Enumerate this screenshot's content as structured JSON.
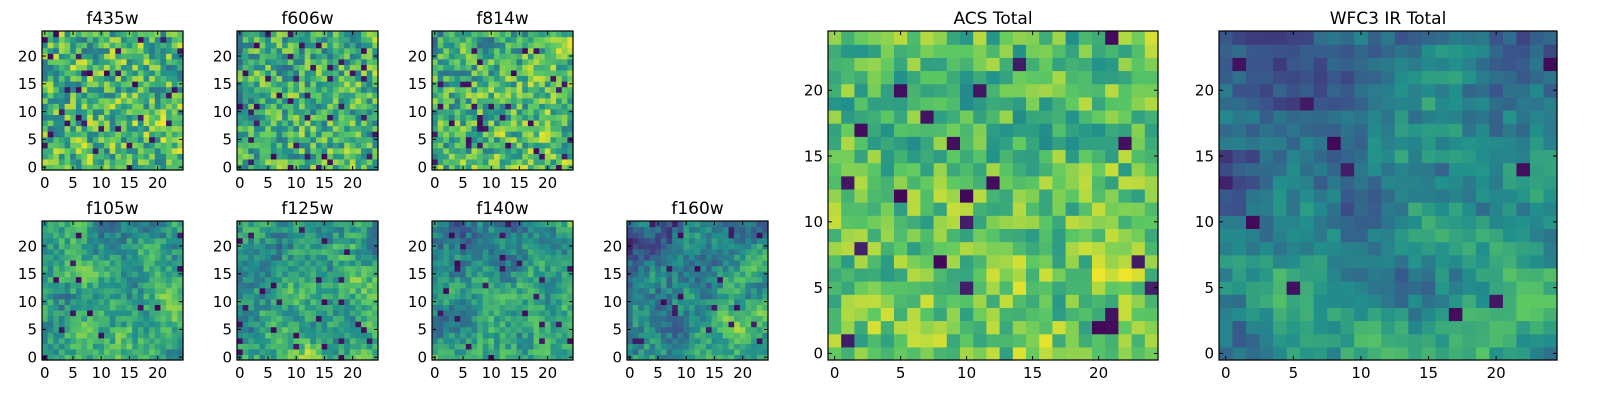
{
  "chart_data": [
    {
      "id": "f435w",
      "type": "heatmap",
      "title": "f435w",
      "grid_size": 25,
      "xlim": [
        0,
        24
      ],
      "ylim": [
        0,
        24
      ],
      "xticks": [
        0,
        5,
        10,
        15,
        20
      ],
      "yticks": [
        0,
        5,
        10,
        15,
        20
      ],
      "colormap": "viridis",
      "pattern": {
        "seed": 11,
        "base": 0.68,
        "smooth": 0.12,
        "noise": 0.55,
        "lowspots": 0.05,
        "gradient": 0.0
      }
    },
    {
      "id": "f606w",
      "type": "heatmap",
      "title": "f606w",
      "grid_size": 25,
      "xlim": [
        0,
        24
      ],
      "ylim": [
        0,
        24
      ],
      "xticks": [
        0,
        5,
        10,
        15,
        20
      ],
      "yticks": [
        0,
        5,
        10,
        15,
        20
      ],
      "colormap": "viridis",
      "pattern": {
        "seed": 23,
        "base": 0.64,
        "smooth": 0.15,
        "noise": 0.5,
        "lowspots": 0.06,
        "gradient": 0.05
      }
    },
    {
      "id": "f814w",
      "type": "heatmap",
      "title": "f814w",
      "grid_size": 25,
      "xlim": [
        0,
        24
      ],
      "ylim": [
        0,
        24
      ],
      "xticks": [
        0,
        5,
        10,
        15,
        20
      ],
      "yticks": [
        0,
        5,
        10,
        15,
        20
      ],
      "colormap": "viridis",
      "pattern": {
        "seed": 37,
        "base": 0.66,
        "smooth": 0.15,
        "noise": 0.5,
        "lowspots": 0.05,
        "gradient": 0.1
      }
    },
    {
      "id": "f105w",
      "type": "heatmap",
      "title": "f105w",
      "grid_size": 25,
      "xlim": [
        0,
        24
      ],
      "ylim": [
        0,
        24
      ],
      "xticks": [
        0,
        5,
        10,
        15,
        20
      ],
      "yticks": [
        0,
        5,
        10,
        15,
        20
      ],
      "colormap": "viridis",
      "pattern": {
        "seed": 41,
        "base": 0.58,
        "smooth": 0.4,
        "noise": 0.28,
        "lowspots": 0.03,
        "gradient": 0.12
      }
    },
    {
      "id": "f125w",
      "type": "heatmap",
      "title": "f125w",
      "grid_size": 25,
      "xlim": [
        0,
        24
      ],
      "ylim": [
        0,
        24
      ],
      "xticks": [
        0,
        5,
        10,
        15,
        20
      ],
      "yticks": [
        0,
        5,
        10,
        15,
        20
      ],
      "colormap": "viridis",
      "pattern": {
        "seed": 53,
        "base": 0.58,
        "smooth": 0.4,
        "noise": 0.28,
        "lowspots": 0.03,
        "gradient": 0.15
      }
    },
    {
      "id": "f140w",
      "type": "heatmap",
      "title": "f140w",
      "grid_size": 25,
      "xlim": [
        0,
        24
      ],
      "ylim": [
        0,
        24
      ],
      "xticks": [
        0,
        5,
        10,
        15,
        20
      ],
      "yticks": [
        0,
        5,
        10,
        15,
        20
      ],
      "colormap": "viridis",
      "pattern": {
        "seed": 67,
        "base": 0.52,
        "smooth": 0.45,
        "noise": 0.25,
        "lowspots": 0.03,
        "gradient": 0.22
      }
    },
    {
      "id": "f160w",
      "type": "heatmap",
      "title": "f160w",
      "grid_size": 25,
      "xlim": [
        0,
        24
      ],
      "ylim": [
        0,
        24
      ],
      "xticks": [
        0,
        5,
        10,
        15,
        20
      ],
      "yticks": [
        0,
        5,
        10,
        15,
        20
      ],
      "colormap": "viridis",
      "pattern": {
        "seed": 79,
        "base": 0.48,
        "smooth": 0.45,
        "noise": 0.25,
        "lowspots": 0.03,
        "gradient": 0.28
      }
    },
    {
      "id": "acs-total",
      "type": "heatmap",
      "title": "ACS Total",
      "grid_size": 25,
      "xlim": [
        0,
        24
      ],
      "ylim": [
        0,
        24
      ],
      "xticks": [
        0,
        5,
        10,
        15,
        20
      ],
      "yticks": [
        0,
        5,
        10,
        15,
        20
      ],
      "colormap": "viridis",
      "pattern": {
        "seed": 97,
        "base": 0.72,
        "smooth": 0.2,
        "noise": 0.38,
        "lowspots": 0.04,
        "gradient": 0.08
      }
    },
    {
      "id": "wfc3-ir-total",
      "type": "heatmap",
      "title": "WFC3 IR Total",
      "grid_size": 25,
      "xlim": [
        0,
        24
      ],
      "ylim": [
        0,
        24
      ],
      "xticks": [
        0,
        5,
        10,
        15,
        20
      ],
      "yticks": [
        0,
        5,
        10,
        15,
        20
      ],
      "colormap": "viridis",
      "pattern": {
        "seed": 131,
        "base": 0.45,
        "smooth": 0.55,
        "noise": 0.16,
        "lowspots": 0.015,
        "gradient": 0.35
      }
    }
  ],
  "colors": {
    "viridis": [
      "#440154",
      "#3b528b",
      "#21918c",
      "#5ec962",
      "#fde725"
    ],
    "axis": "#000000",
    "background": "#ffffff"
  }
}
